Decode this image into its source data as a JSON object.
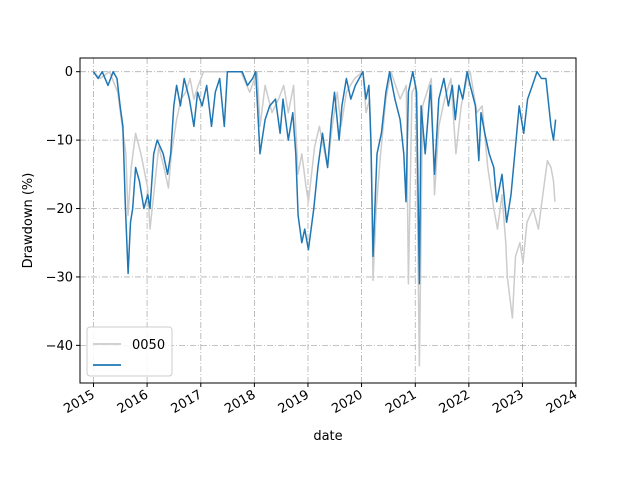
{
  "chart_data": {
    "type": "line",
    "title": "",
    "xlabel": "date",
    "ylabel": "Drawdown (%)",
    "xlim": [
      "2014-10-01",
      "2024-01-01"
    ],
    "ylim": [
      -45.5,
      2
    ],
    "grid": true,
    "grid_style": "dash-dot",
    "legend_position": "lower-left",
    "y_ticks": [
      0,
      -10,
      -20,
      -30,
      -40
    ],
    "y_tick_labels": [
      "0",
      "−10",
      "−20",
      "−30",
      "−40"
    ],
    "x_ticks": [
      "2015-01-01",
      "2016-01-01",
      "2017-01-01",
      "2018-01-01",
      "2019-01-01",
      "2020-01-01",
      "2021-01-01",
      "2022-01-01",
      "2023-01-01",
      "2024-01-01"
    ],
    "x_tick_labels": [
      "2015",
      "2016",
      "2017",
      "2018",
      "2019",
      "2020",
      "2021",
      "2022",
      "2023",
      "2024"
    ],
    "series": [
      {
        "name": "0050",
        "color": "#cccccc",
        "points": [
          [
            "2015-01-01",
            0
          ],
          [
            "2015-02-15",
            -1
          ],
          [
            "2015-04-20",
            0
          ],
          [
            "2015-06-15",
            -3
          ],
          [
            "2015-08-10",
            -12
          ],
          [
            "2015-08-24",
            -21
          ],
          [
            "2015-09-15",
            -14
          ],
          [
            "2015-10-15",
            -9
          ],
          [
            "2015-11-20",
            -12
          ],
          [
            "2016-01-05",
            -17
          ],
          [
            "2016-01-21",
            -23
          ],
          [
            "2016-02-20",
            -17
          ],
          [
            "2016-03-20",
            -11
          ],
          [
            "2016-04-25",
            -14
          ],
          [
            "2016-05-25",
            -17
          ],
          [
            "2016-06-15",
            -12
          ],
          [
            "2016-07-20",
            -7
          ],
          [
            "2016-08-20",
            -4
          ],
          [
            "2016-09-20",
            -3
          ],
          [
            "2016-10-20",
            -1
          ],
          [
            "2016-11-15",
            -4
          ],
          [
            "2016-12-15",
            -2
          ],
          [
            "2017-01-20",
            0
          ],
          [
            "2017-04-01",
            0
          ],
          [
            "2017-06-01",
            0
          ],
          [
            "2017-08-01",
            0
          ],
          [
            "2017-10-01",
            0
          ],
          [
            "2017-11-30",
            -3
          ],
          [
            "2018-01-20",
            0
          ],
          [
            "2018-02-08",
            -8
          ],
          [
            "2018-03-15",
            -2
          ],
          [
            "2018-05-01",
            -6
          ],
          [
            "2018-06-15",
            -4
          ],
          [
            "2018-07-20",
            -2
          ],
          [
            "2018-08-20",
            -6
          ],
          [
            "2018-09-25",
            -2
          ],
          [
            "2018-10-25",
            -15
          ],
          [
            "2018-11-20",
            -12
          ],
          [
            "2018-12-20",
            -17
          ],
          [
            "2019-01-04",
            -19
          ],
          [
            "2019-02-15",
            -11
          ],
          [
            "2019-03-20",
            -8
          ],
          [
            "2019-05-15",
            -14
          ],
          [
            "2019-06-15",
            -8
          ],
          [
            "2019-07-20",
            -3
          ],
          [
            "2019-08-15",
            -8
          ],
          [
            "2019-09-20",
            -3
          ],
          [
            "2019-11-15",
            -1
          ],
          [
            "2020-01-10",
            0
          ],
          [
            "2020-02-01",
            -6
          ],
          [
            "2020-02-25",
            -4
          ],
          [
            "2020-03-10",
            -15
          ],
          [
            "2020-03-19",
            -30.5
          ],
          [
            "2020-04-10",
            -20
          ],
          [
            "2020-05-10",
            -12
          ],
          [
            "2020-06-15",
            -4
          ],
          [
            "2020-07-20",
            0
          ],
          [
            "2020-09-20",
            -4
          ],
          [
            "2020-11-01",
            -2
          ],
          [
            "2020-11-15",
            -31
          ],
          [
            "2020-12-10",
            -3
          ],
          [
            "2021-01-05",
            -2
          ],
          [
            "2021-01-29",
            -43
          ],
          [
            "2021-02-20",
            -5
          ],
          [
            "2021-04-20",
            -1
          ],
          [
            "2021-05-12",
            -18
          ],
          [
            "2021-06-10",
            -8
          ],
          [
            "2021-07-20",
            -4
          ],
          [
            "2021-09-01",
            -1
          ],
          [
            "2021-10-05",
            -12
          ],
          [
            "2021-11-10",
            -5
          ],
          [
            "2021-12-20",
            -1
          ],
          [
            "2022-01-10",
            0
          ],
          [
            "2022-02-25",
            -6
          ],
          [
            "2022-04-01",
            -5
          ],
          [
            "2022-05-10",
            -14
          ],
          [
            "2022-06-20",
            -20
          ],
          [
            "2022-07-15",
            -23
          ],
          [
            "2022-08-15",
            -18
          ],
          [
            "2022-09-10",
            -25
          ],
          [
            "2022-09-20",
            -30
          ],
          [
            "2022-10-25",
            -36
          ],
          [
            "2022-11-15",
            -27
          ],
          [
            "2022-12-15",
            -25
          ],
          [
            "2023-01-05",
            -28
          ],
          [
            "2023-02-01",
            -22
          ],
          [
            "2023-03-15",
            -20
          ],
          [
            "2023-04-20",
            -23
          ],
          [
            "2023-05-20",
            -18
          ],
          [
            "2023-06-20",
            -13
          ],
          [
            "2023-07-15",
            -14
          ],
          [
            "2023-08-01",
            -16
          ],
          [
            "2023-08-10",
            -19
          ]
        ]
      },
      {
        "name": "",
        "color": "#1f77b4",
        "points": [
          [
            "2015-01-01",
            0
          ],
          [
            "2015-02-01",
            -1
          ],
          [
            "2015-03-01",
            0
          ],
          [
            "2015-04-10",
            -2
          ],
          [
            "2015-05-15",
            0
          ],
          [
            "2015-06-10",
            -1
          ],
          [
            "2015-07-01",
            -5
          ],
          [
            "2015-07-20",
            -8
          ],
          [
            "2015-08-05",
            -19
          ],
          [
            "2015-08-25",
            -29.5
          ],
          [
            "2015-09-10",
            -22
          ],
          [
            "2015-09-25",
            -20
          ],
          [
            "2015-10-15",
            -14
          ],
          [
            "2015-11-10",
            -16
          ],
          [
            "2015-12-10",
            -20
          ],
          [
            "2016-01-05",
            -18
          ],
          [
            "2016-01-21",
            -20
          ],
          [
            "2016-02-15",
            -12
          ],
          [
            "2016-03-10",
            -10
          ],
          [
            "2016-04-20",
            -12
          ],
          [
            "2016-05-20",
            -15
          ],
          [
            "2016-06-10",
            -12
          ],
          [
            "2016-07-01",
            -5
          ],
          [
            "2016-07-20",
            -2
          ],
          [
            "2016-08-15",
            -5
          ],
          [
            "2016-09-10",
            -1
          ],
          [
            "2016-10-15",
            -4
          ],
          [
            "2016-11-15",
            -8
          ],
          [
            "2016-12-10",
            -3
          ],
          [
            "2017-01-10",
            -5
          ],
          [
            "2017-02-10",
            -2
          ],
          [
            "2017-03-15",
            -8
          ],
          [
            "2017-04-10",
            -3
          ],
          [
            "2017-05-10",
            -1
          ],
          [
            "2017-06-10",
            -8
          ],
          [
            "2017-07-01",
            0
          ],
          [
            "2017-08-01",
            0
          ],
          [
            "2017-09-01",
            0
          ],
          [
            "2017-10-10",
            0
          ],
          [
            "2017-11-15",
            -2
          ],
          [
            "2017-12-20",
            -1
          ],
          [
            "2018-01-10",
            0
          ],
          [
            "2018-02-08",
            -12
          ],
          [
            "2018-03-15",
            -7
          ],
          [
            "2018-04-15",
            -5
          ],
          [
            "2018-05-25",
            -4
          ],
          [
            "2018-06-25",
            -9
          ],
          [
            "2018-07-15",
            -4
          ],
          [
            "2018-08-20",
            -10
          ],
          [
            "2018-09-20",
            -6
          ],
          [
            "2018-10-10",
            -12
          ],
          [
            "2018-10-26",
            -21
          ],
          [
            "2018-11-20",
            -25
          ],
          [
            "2018-12-10",
            -23
          ],
          [
            "2019-01-04",
            -26
          ],
          [
            "2019-02-10",
            -20
          ],
          [
            "2019-03-10",
            -14
          ],
          [
            "2019-04-10",
            -9
          ],
          [
            "2019-05-15",
            -14
          ],
          [
            "2019-06-10",
            -7
          ],
          [
            "2019-07-01",
            -3
          ],
          [
            "2019-08-01",
            -10
          ],
          [
            "2019-08-20",
            -5
          ],
          [
            "2019-09-20",
            -1
          ],
          [
            "2019-10-20",
            -4
          ],
          [
            "2019-11-20",
            -2
          ],
          [
            "2020-01-10",
            0
          ],
          [
            "2020-01-31",
            -4
          ],
          [
            "2020-02-20",
            -2
          ],
          [
            "2020-03-05",
            -10
          ],
          [
            "2020-03-19",
            -27
          ],
          [
            "2020-04-15",
            -12
          ],
          [
            "2020-05-15",
            -9
          ],
          [
            "2020-06-15",
            -3
          ],
          [
            "2020-07-10",
            0
          ],
          [
            "2020-08-15",
            -4
          ],
          [
            "2020-09-20",
            -7
          ],
          [
            "2020-10-15",
            -12
          ],
          [
            "2020-10-30",
            -19
          ],
          [
            "2020-11-15",
            -3
          ],
          [
            "2020-12-15",
            0
          ],
          [
            "2021-01-10",
            -3
          ],
          [
            "2021-01-29",
            -31
          ],
          [
            "2021-02-10",
            -5
          ],
          [
            "2021-03-10",
            -12
          ],
          [
            "2021-04-15",
            -2
          ],
          [
            "2021-05-12",
            -15
          ],
          [
            "2021-06-10",
            -4
          ],
          [
            "2021-07-15",
            -1
          ],
          [
            "2021-08-15",
            -5
          ],
          [
            "2021-09-10",
            -2
          ],
          [
            "2021-10-01",
            -7
          ],
          [
            "2021-10-25",
            -2
          ],
          [
            "2021-11-20",
            -4
          ],
          [
            "2021-12-20",
            0
          ],
          [
            "2022-01-10",
            -2
          ],
          [
            "2022-02-15",
            -5
          ],
          [
            "2022-03-10",
            -13
          ],
          [
            "2022-03-25",
            -6
          ],
          [
            "2022-04-20",
            -9
          ],
          [
            "2022-05-20",
            -12
          ],
          [
            "2022-06-20",
            -14
          ],
          [
            "2022-07-10",
            -19
          ],
          [
            "2022-08-15",
            -15
          ],
          [
            "2022-09-15",
            -22
          ],
          [
            "2022-10-15",
            -18
          ],
          [
            "2022-11-10",
            -12
          ],
          [
            "2022-12-10",
            -5
          ],
          [
            "2023-01-10",
            -9
          ],
          [
            "2023-02-05",
            -4
          ],
          [
            "2023-03-10",
            -2
          ],
          [
            "2023-04-10",
            0
          ],
          [
            "2023-05-10",
            -1
          ],
          [
            "2023-06-10",
            -1
          ],
          [
            "2023-06-25",
            -4
          ],
          [
            "2023-07-15",
            -8
          ],
          [
            "2023-08-01",
            -10
          ],
          [
            "2023-08-10",
            -8
          ],
          [
            "2023-08-15",
            -7
          ]
        ]
      }
    ]
  }
}
